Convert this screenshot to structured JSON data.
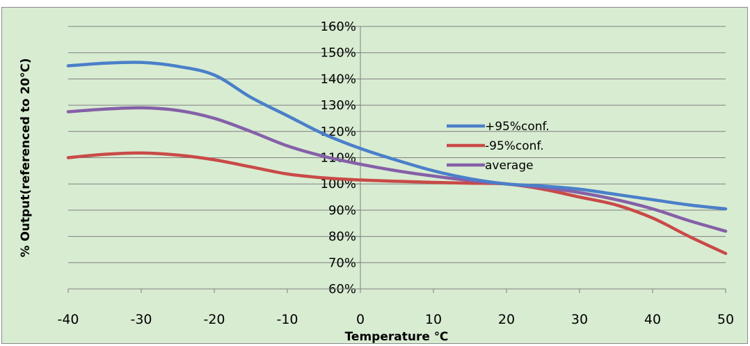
{
  "chart_data": {
    "type": "line",
    "xlabel": "Temperature ℃",
    "ylabel": "% Output(referenced to 20℃)",
    "xlim": [
      -40,
      50
    ],
    "ylim": [
      60,
      160
    ],
    "x_ticks": [
      "-40",
      "-30",
      "-20",
      "-10",
      "0",
      "10",
      "20",
      "30",
      "40",
      "50"
    ],
    "y_ticks": [
      "60%",
      "70%",
      "80%",
      "90%",
      "100%",
      "110%",
      "120%",
      "130%",
      "140%",
      "150%",
      "160%"
    ],
    "grid": "horizontal",
    "legend_position": "center-right",
    "background": "#d8ecd2",
    "series": [
      {
        "name": "+95%conf.",
        "color": "#4a7fc9",
        "points": [
          [
            -40,
            145
          ],
          [
            -35,
            146
          ],
          [
            -30,
            146.3
          ],
          [
            -25,
            144.8
          ],
          [
            -20,
            141.5
          ],
          [
            -15,
            133
          ],
          [
            -10,
            126
          ],
          [
            -5,
            119
          ],
          [
            0,
            113.5
          ],
          [
            5,
            109
          ],
          [
            10,
            105
          ],
          [
            15,
            102
          ],
          [
            20,
            100
          ],
          [
            25,
            99.2
          ],
          [
            30,
            98
          ],
          [
            35,
            96
          ],
          [
            40,
            94
          ],
          [
            45,
            92
          ],
          [
            50,
            90.5
          ]
        ]
      },
      {
        "name": "-95%conf.",
        "color": "#c94a47",
        "points": [
          [
            -40,
            110
          ],
          [
            -35,
            111.3
          ],
          [
            -30,
            111.8
          ],
          [
            -25,
            111
          ],
          [
            -20,
            109.2
          ],
          [
            -15,
            106.5
          ],
          [
            -10,
            103.8
          ],
          [
            -5,
            102.3
          ],
          [
            0,
            101.5
          ],
          [
            5,
            101
          ],
          [
            10,
            100.6
          ],
          [
            15,
            100.3
          ],
          [
            20,
            100
          ],
          [
            25,
            98
          ],
          [
            30,
            95
          ],
          [
            35,
            92
          ],
          [
            40,
            87
          ],
          [
            45,
            80
          ],
          [
            50,
            73.5
          ]
        ]
      },
      {
        "name": "average",
        "color": "#8560a8",
        "points": [
          [
            -40,
            127.5
          ],
          [
            -35,
            128.5
          ],
          [
            -30,
            129
          ],
          [
            -25,
            128
          ],
          [
            -20,
            125
          ],
          [
            -15,
            120
          ],
          [
            -10,
            114.5
          ],
          [
            -5,
            110.5
          ],
          [
            0,
            107.5
          ],
          [
            5,
            105
          ],
          [
            10,
            103
          ],
          [
            15,
            101.3
          ],
          [
            20,
            100
          ],
          [
            25,
            98.7
          ],
          [
            30,
            96.7
          ],
          [
            35,
            94
          ],
          [
            40,
            90.5
          ],
          [
            45,
            86
          ],
          [
            50,
            82
          ]
        ]
      }
    ]
  }
}
